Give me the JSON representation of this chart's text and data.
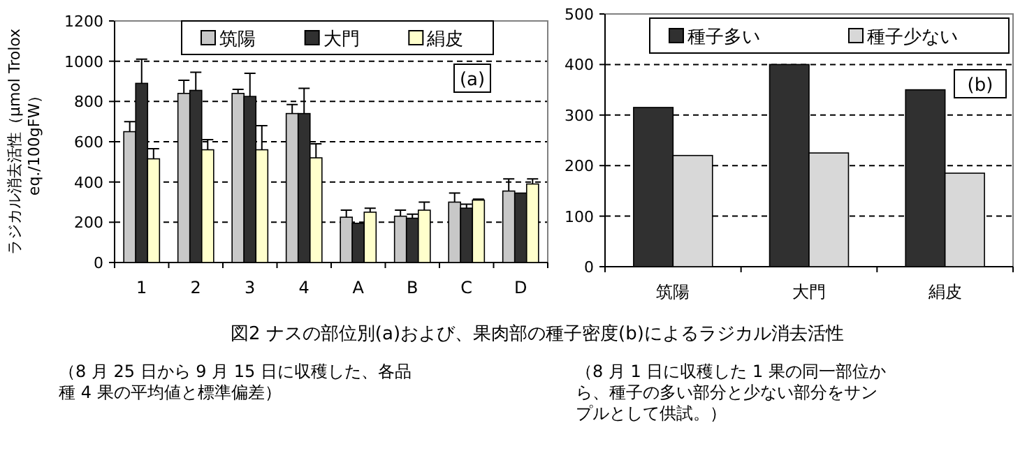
{
  "chart_data": [
    {
      "type": "bar",
      "categories": [
        "1",
        "2",
        "3",
        "4",
        "A",
        "B",
        "C",
        "D"
      ],
      "ylabel": "ラジカル消去活性（μmol Trolox\neq./100gFW）",
      "ylim": [
        0,
        1200
      ],
      "yticks": [
        0,
        200,
        400,
        600,
        800,
        1000,
        1200
      ],
      "grid": "y",
      "legend": "top",
      "series": [
        {
          "name": "筑陽",
          "color": "#c8c8c8",
          "values": [
            650,
            840,
            840,
            740,
            225,
            230,
            300,
            355
          ],
          "errors": [
            [
              650,
              700
            ],
            [
              840,
              905
            ],
            [
              840,
              860
            ],
            [
              740,
              785
            ],
            [
              225,
              260
            ],
            [
              230,
              260
            ],
            [
              300,
              345
            ],
            [
              355,
              415
            ]
          ]
        },
        {
          "name": "大門",
          "color": "#303030",
          "values": [
            890,
            855,
            825,
            740,
            195,
            220,
            270,
            345
          ],
          "errors": [
            [
              890,
              1010
            ],
            [
              855,
              945
            ],
            [
              825,
              940
            ],
            [
              740,
              865
            ],
            null,
            [
              220,
              240
            ],
            [
              270,
              290
            ],
            null
          ]
        },
        {
          "name": "絹皮",
          "color": "#ffffcc",
          "values": [
            515,
            560,
            560,
            520,
            250,
            260,
            310,
            390
          ],
          "errors": [
            [
              515,
              565
            ],
            [
              560,
              610
            ],
            [
              560,
              680
            ],
            [
              520,
              590
            ],
            [
              250,
              270
            ],
            [
              260,
              300
            ],
            [
              310,
              315
            ],
            [
              390,
              415
            ]
          ]
        }
      ],
      "annotations": [
        "(a)",
        "図2 ナスの部位別(a)および、果肉部の種子密度(b)によるラジカル消去活性",
        "（8 月 25 日から 9 月 15 日に収穫した、各品種 4 果の平均値と標準偏差）"
      ]
    },
    {
      "type": "bar",
      "categories": [
        "筑陽",
        "大門",
        "絹皮"
      ],
      "ylim": [
        0,
        500
      ],
      "yticks": [
        0,
        100,
        200,
        300,
        400,
        500
      ],
      "grid": "y",
      "legend": "top",
      "series": [
        {
          "name": "種子多い",
          "color": "#303030",
          "values": [
            315,
            400,
            350
          ]
        },
        {
          "name": "種子少ない",
          "color": "#d8d8d8",
          "values": [
            220,
            225,
            185
          ]
        }
      ],
      "annotations": [
        "(b)",
        "（8 月 1 日に収穫した 1 果の同一部位から、種子の多い部分と少ない部分をサンプルとして供試。）"
      ]
    }
  ]
}
